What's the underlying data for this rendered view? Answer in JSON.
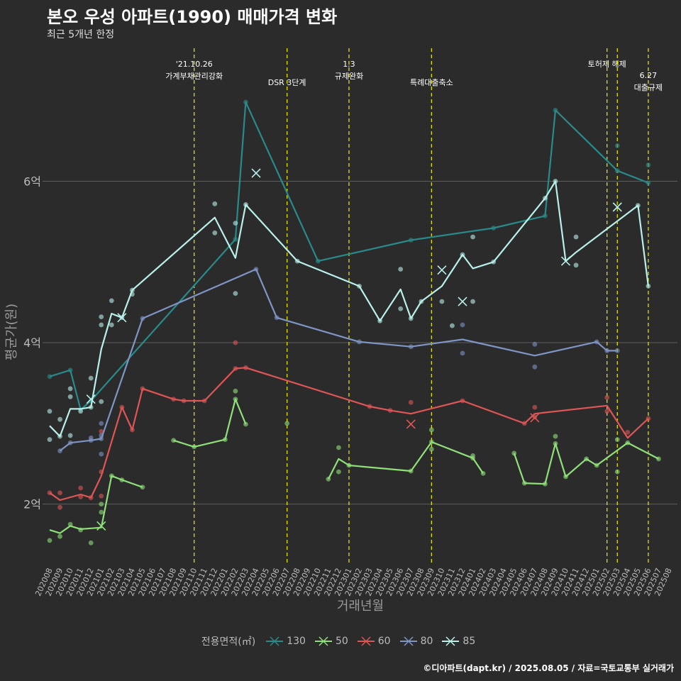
{
  "header": {
    "title": "본오 우성 아파트(1990) 매매가격 변화",
    "subtitle": "최근 5개년 한정"
  },
  "caption": "©디아파트(dapt.kr) / 2025.08.05 / 자료=국토교통부 실거래가",
  "colors": {
    "130": "#2a8a8a",
    "50": "#90e07a",
    "60": "#e05555",
    "80": "#7f95c5",
    "85": "#b9f0ea",
    "event": "#e0e000",
    "grid": "#5e5e5e"
  },
  "chart_data": {
    "type": "line",
    "xlabel": "거래년월",
    "ylabel": "평균가(원)",
    "legend_title": "전용면적(㎡)",
    "legend_position": "bottom",
    "ylim": [
      1.25,
      7.7
    ],
    "y_ticks": [
      2,
      4,
      6
    ],
    "y_tick_labels": [
      "2억",
      "4억",
      "6억"
    ],
    "x_ticks": [
      "202008",
      "202009",
      "202010",
      "202011",
      "202012",
      "202101",
      "202102",
      "202103",
      "202104",
      "202105",
      "202106",
      "202107",
      "202108",
      "202109",
      "202110",
      "202111",
      "202112",
      "202201",
      "202202",
      "202203",
      "202204",
      "202205",
      "202206",
      "202207",
      "202208",
      "202209",
      "202210",
      "202211",
      "202212",
      "202301",
      "202302",
      "202303",
      "202304",
      "202305",
      "202306",
      "202307",
      "202308",
      "202309",
      "202310",
      "202311",
      "202312",
      "202401",
      "202402",
      "202403",
      "202404",
      "202405",
      "202406",
      "202407",
      "202408",
      "202409",
      "202410",
      "202411",
      "202412",
      "202501",
      "202502",
      "202503",
      "202504",
      "202505",
      "202506",
      "202507",
      "202508"
    ],
    "events": [
      {
        "x": "202110",
        "label_lines": [
          "'21.10.26",
          "가계부채관리강화"
        ],
        "row": 0
      },
      {
        "x": "202207",
        "label_lines": [
          "DSR 3단계"
        ],
        "row": 1
      },
      {
        "x": "202301",
        "label_lines": [
          "1.3",
          "규제완화"
        ],
        "row": 0
      },
      {
        "x": "202309",
        "label_lines": [
          "특례대출축소"
        ],
        "row": 1
      },
      {
        "x": "202502",
        "label_lines": [
          "토허제 해제"
        ],
        "row": 0
      },
      {
        "x": "202503",
        "label_lines": [],
        "row": 0
      },
      {
        "x": "202506",
        "label_lines": [
          "6.27",
          "대출규제"
        ],
        "row": 0.5
      }
    ],
    "series": [
      {
        "name": "130",
        "line": [
          [
            0,
            3.58
          ],
          [
            2,
            3.66
          ],
          [
            3,
            3.17
          ],
          [
            4,
            3.28
          ],
          [
            18,
            5.28
          ],
          [
            19,
            6.98
          ],
          [
            26,
            5.01
          ],
          [
            35,
            5.27
          ],
          [
            43,
            5.42
          ],
          [
            48,
            5.57
          ],
          [
            49,
            6.88
          ],
          [
            55,
            6.13
          ],
          [
            58,
            5.98
          ]
        ],
        "points": [
          [
            0,
            3.58
          ],
          [
            2,
            3.66
          ],
          [
            3,
            3.17
          ],
          [
            4,
            3.28
          ],
          [
            18,
            5.28
          ],
          [
            19,
            6.98
          ],
          [
            26,
            5.01
          ],
          [
            35,
            5.27
          ],
          [
            43,
            5.42
          ],
          [
            48,
            5.57
          ],
          [
            49,
            6.88
          ],
          [
            55,
            6.13
          ],
          [
            58,
            5.98
          ],
          [
            55,
            6.44
          ],
          [
            58,
            6.2
          ]
        ],
        "crosses": []
      },
      {
        "name": "50",
        "line": [
          [
            0,
            1.68
          ],
          [
            1,
            1.64
          ],
          [
            2,
            1.73
          ],
          [
            3,
            1.69
          ],
          [
            4,
            1.7
          ],
          [
            5,
            1.71
          ],
          [
            6,
            2.35
          ],
          [
            7,
            2.3
          ],
          [
            9,
            2.21
          ]
        ],
        "line2": [
          [
            12,
            2.79
          ],
          [
            14,
            2.71
          ],
          [
            17,
            2.8
          ],
          [
            18,
            3.3
          ],
          [
            19,
            2.99
          ]
        ],
        "line3": [
          [
            27,
            2.31
          ],
          [
            28,
            2.56
          ],
          [
            29,
            2.48
          ],
          [
            35,
            2.41
          ],
          [
            37,
            2.77
          ],
          [
            41,
            2.57
          ],
          [
            42,
            2.38
          ]
        ],
        "line4": [
          [
            45,
            2.63
          ],
          [
            46,
            2.26
          ],
          [
            48,
            2.25
          ],
          [
            49,
            2.75
          ],
          [
            50,
            2.34
          ],
          [
            52,
            2.56
          ],
          [
            53,
            2.48
          ],
          [
            56,
            2.76
          ],
          [
            59,
            2.56
          ]
        ],
        "points": [
          [
            0,
            1.55
          ],
          [
            1,
            1.6
          ],
          [
            2,
            1.75
          ],
          [
            3,
            1.68
          ],
          [
            4,
            1.52
          ],
          [
            5,
            1.9
          ],
          [
            5,
            2.0
          ],
          [
            6,
            2.35
          ],
          [
            7,
            2.3
          ],
          [
            9,
            2.21
          ],
          [
            12,
            2.79
          ],
          [
            14,
            2.71
          ],
          [
            17,
            2.8
          ],
          [
            18,
            3.3
          ],
          [
            18,
            3.4
          ],
          [
            19,
            2.99
          ],
          [
            23,
            3.0
          ],
          [
            27,
            2.31
          ],
          [
            28,
            2.4
          ],
          [
            28,
            2.7
          ],
          [
            29,
            2.48
          ],
          [
            35,
            2.41
          ],
          [
            37,
            2.77
          ],
          [
            37,
            2.92
          ],
          [
            37,
            2.68
          ],
          [
            41,
            2.57
          ],
          [
            41,
            2.6
          ],
          [
            42,
            2.38
          ],
          [
            45,
            2.63
          ],
          [
            46,
            2.26
          ],
          [
            48,
            2.25
          ],
          [
            49,
            2.75
          ],
          [
            49,
            2.84
          ],
          [
            50,
            2.34
          ],
          [
            52,
            2.56
          ],
          [
            53,
            2.48
          ],
          [
            55,
            2.4
          ],
          [
            55,
            2.8
          ],
          [
            56,
            2.76
          ],
          [
            59,
            2.56
          ]
        ],
        "crosses": [
          [
            5,
            1.73
          ]
        ]
      },
      {
        "name": "60",
        "line": [
          [
            0,
            2.14
          ],
          [
            1,
            2.05
          ],
          [
            3,
            2.12
          ],
          [
            4,
            2.08
          ],
          [
            5,
            2.35
          ],
          [
            7,
            3.2
          ],
          [
            8,
            2.92
          ],
          [
            9,
            3.43
          ],
          [
            12,
            3.3
          ],
          [
            13,
            3.28
          ],
          [
            15,
            3.28
          ],
          [
            18,
            3.68
          ],
          [
            19,
            3.69
          ],
          [
            31,
            3.21
          ],
          [
            33,
            3.16
          ],
          [
            35,
            3.12
          ],
          [
            40,
            3.28
          ],
          [
            46,
            3.0
          ],
          [
            47,
            3.12
          ],
          [
            54,
            3.22
          ],
          [
            56,
            2.82
          ],
          [
            58,
            3.06
          ]
        ],
        "points": [
          [
            0,
            2.14
          ],
          [
            1,
            2.14
          ],
          [
            1,
            1.96
          ],
          [
            3,
            2.2
          ],
          [
            3,
            2.09
          ],
          [
            4,
            2.08
          ],
          [
            5,
            2.1
          ],
          [
            5,
            2.9
          ],
          [
            5,
            2.4
          ],
          [
            7,
            3.2
          ],
          [
            8,
            2.92
          ],
          [
            9,
            3.43
          ],
          [
            12,
            3.3
          ],
          [
            13,
            3.28
          ],
          [
            15,
            3.28
          ],
          [
            18,
            4.0
          ],
          [
            18,
            3.68
          ],
          [
            19,
            3.69
          ],
          [
            31,
            3.21
          ],
          [
            33,
            3.16
          ],
          [
            35,
            3.26
          ],
          [
            40,
            3.28
          ],
          [
            46,
            3.0
          ],
          [
            47,
            3.2
          ],
          [
            47,
            3.08
          ],
          [
            54,
            3.32
          ],
          [
            54,
            3.15
          ],
          [
            56,
            2.89
          ],
          [
            58,
            3.06
          ]
        ],
        "crosses": [
          [
            35,
            2.99
          ],
          [
            47,
            3.07
          ]
        ]
      },
      {
        "name": "80",
        "line": [
          [
            1,
            2.66
          ],
          [
            2,
            2.76
          ],
          [
            4,
            2.79
          ],
          [
            5,
            2.81
          ],
          [
            9,
            4.3
          ],
          [
            20,
            4.91
          ],
          [
            22,
            4.31
          ],
          [
            30,
            4.01
          ],
          [
            35,
            3.95
          ],
          [
            40,
            4.04
          ],
          [
            47,
            3.84
          ],
          [
            53,
            4.01
          ],
          [
            54,
            3.9
          ],
          [
            55,
            3.9
          ]
        ],
        "points": [
          [
            1,
            2.66
          ],
          [
            2,
            2.76
          ],
          [
            4,
            2.79
          ],
          [
            4,
            2.82
          ],
          [
            5,
            2.81
          ],
          [
            5,
            3.0
          ],
          [
            5,
            2.62
          ],
          [
            5,
            2.85
          ],
          [
            9,
            4.3
          ],
          [
            20,
            4.91
          ],
          [
            22,
            4.31
          ],
          [
            30,
            4.01
          ],
          [
            35,
            3.95
          ],
          [
            40,
            4.22
          ],
          [
            40,
            3.87
          ],
          [
            47,
            3.7
          ],
          [
            47,
            3.98
          ],
          [
            53,
            4.01
          ],
          [
            54,
            3.9
          ],
          [
            55,
            3.9
          ]
        ],
        "crosses": []
      },
      {
        "name": "85",
        "line": [
          [
            0,
            2.97
          ],
          [
            1,
            2.84
          ],
          [
            2,
            3.18
          ],
          [
            3,
            3.18
          ],
          [
            4,
            3.2
          ],
          [
            5,
            3.92
          ],
          [
            6,
            4.36
          ],
          [
            7,
            4.31
          ],
          [
            8,
            4.65
          ],
          [
            16,
            5.55
          ],
          [
            18,
            5.05
          ],
          [
            19,
            5.71
          ],
          [
            24,
            5.01
          ],
          [
            30,
            4.7
          ],
          [
            32,
            4.27
          ],
          [
            34,
            4.66
          ],
          [
            35,
            4.3
          ],
          [
            36,
            4.51
          ],
          [
            38,
            4.7
          ],
          [
            40,
            5.09
          ],
          [
            41,
            4.92
          ],
          [
            43,
            5.0
          ],
          [
            48,
            5.79
          ],
          [
            49,
            6.0
          ],
          [
            50,
            5.01
          ],
          [
            51,
            5.12
          ],
          [
            57,
            5.7
          ],
          [
            58,
            4.7
          ]
        ],
        "points": [
          [
            0,
            2.8
          ],
          [
            0,
            3.15
          ],
          [
            1,
            2.84
          ],
          [
            1,
            3.05
          ],
          [
            2,
            3.33
          ],
          [
            2,
            3.43
          ],
          [
            2,
            2.85
          ],
          [
            3,
            3.15
          ],
          [
            4,
            3.56
          ],
          [
            4,
            3.2
          ],
          [
            5,
            3.27
          ],
          [
            5,
            4.32
          ],
          [
            5,
            4.22
          ],
          [
            6,
            4.52
          ],
          [
            6,
            4.22
          ],
          [
            7,
            4.31
          ],
          [
            8,
            4.6
          ],
          [
            8,
            4.65
          ],
          [
            16,
            5.72
          ],
          [
            16,
            5.36
          ],
          [
            18,
            5.48
          ],
          [
            18,
            4.61
          ],
          [
            19,
            5.71
          ],
          [
            24,
            5.01
          ],
          [
            30,
            4.7
          ],
          [
            32,
            4.27
          ],
          [
            34,
            4.91
          ],
          [
            34,
            4.42
          ],
          [
            35,
            4.3
          ],
          [
            36,
            4.51
          ],
          [
            38,
            4.51
          ],
          [
            39,
            4.21
          ],
          [
            40,
            5.09
          ],
          [
            41,
            4.51
          ],
          [
            41,
            5.31
          ],
          [
            43,
            5.0
          ],
          [
            48,
            5.79
          ],
          [
            49,
            6.0
          ],
          [
            51,
            5.31
          ],
          [
            51,
            4.96
          ],
          [
            57,
            5.7
          ],
          [
            58,
            4.7
          ]
        ],
        "crosses": [
          [
            4,
            3.3
          ],
          [
            7,
            4.31
          ],
          [
            20,
            6.1
          ],
          [
            38,
            4.9
          ],
          [
            40,
            4.51
          ],
          [
            50,
            5.01
          ],
          [
            55,
            5.68
          ]
        ]
      }
    ]
  }
}
